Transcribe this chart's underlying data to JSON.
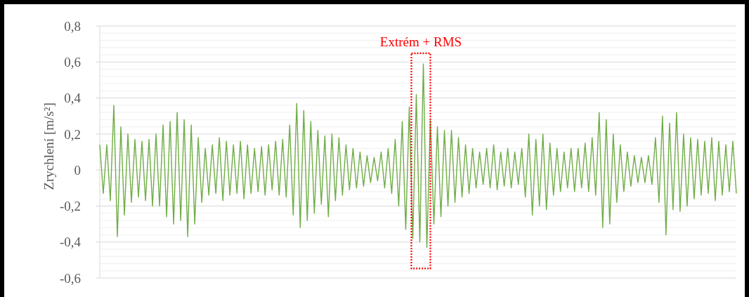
{
  "chart_data": {
    "type": "line",
    "ylabel": "Zrychlení [m/s²]",
    "annotations": [
      "Extrém + RMS"
    ],
    "tick_labels": "y",
    "grid": "y",
    "marker": "none",
    "line_style": "solid",
    "categories": [
      null,
      null,
      null,
      null,
      null,
      null,
      null,
      null,
      null,
      null,
      null,
      null,
      null,
      null,
      null,
      null,
      null,
      null,
      null,
      null,
      null,
      null,
      null,
      null,
      null,
      null,
      null,
      null,
      null,
      null,
      null,
      null,
      null,
      null,
      null,
      null,
      null,
      null,
      null,
      null,
      null,
      null,
      null,
      null,
      null,
      null,
      null,
      null,
      null,
      null,
      null,
      null,
      null,
      null,
      null,
      null,
      null,
      null,
      null,
      null,
      null,
      null,
      null,
      null,
      null,
      null,
      null,
      null,
      null,
      null,
      null,
      null,
      null,
      null,
      null,
      null,
      null,
      null,
      null,
      null,
      null,
      null,
      null,
      null,
      null,
      null,
      null,
      null,
      null,
      null,
      null,
      null,
      null,
      null,
      null,
      null,
      null,
      null,
      null,
      null,
      null,
      null,
      null,
      null,
      null,
      null,
      null,
      null,
      null,
      null,
      null,
      null,
      null,
      null,
      null,
      null,
      null,
      null,
      null,
      null,
      null,
      null,
      null,
      null,
      null,
      null,
      null,
      null,
      null,
      null,
      null,
      null,
      null,
      null,
      null,
      null,
      null,
      null,
      null,
      null,
      null,
      null,
      null,
      null,
      null,
      null,
      null,
      null,
      null,
      null,
      null,
      null,
      null,
      null,
      null,
      null,
      null,
      null,
      null,
      null,
      null,
      null,
      null,
      null,
      null,
      null,
      null,
      null,
      null,
      null,
      null,
      null,
      null,
      null,
      null,
      null,
      null,
      null,
      null,
      null,
      null,
      null
    ],
    "series": [
      {
        "color": "#70ad47",
        "values": [
          0.14,
          -0.13,
          0.14,
          -0.17,
          0.36,
          -0.37,
          0.24,
          -0.25,
          0.2,
          -0.18,
          0.17,
          -0.15,
          0.16,
          -0.17,
          0.17,
          -0.2,
          0.2,
          -0.2,
          0.25,
          -0.26,
          0.27,
          -0.3,
          0.32,
          -0.28,
          0.28,
          -0.37,
          0.25,
          -0.3,
          0.18,
          -0.18,
          0.12,
          -0.14,
          0.14,
          -0.13,
          0.18,
          -0.17,
          0.16,
          -0.14,
          0.14,
          -0.13,
          0.16,
          -0.16,
          0.14,
          -0.13,
          0.12,
          -0.12,
          0.13,
          -0.14,
          0.14,
          -0.11,
          0.16,
          -0.14,
          0.17,
          -0.15,
          0.25,
          -0.25,
          0.37,
          -0.32,
          0.33,
          -0.28,
          0.27,
          -0.24,
          0.22,
          -0.19,
          0.19,
          -0.26,
          0.2,
          -0.17,
          0.18,
          -0.14,
          0.14,
          -0.11,
          0.12,
          -0.1,
          0.1,
          -0.09,
          0.08,
          -0.07,
          0.07,
          -0.06,
          0.1,
          -0.1,
          0.12,
          -0.13,
          0.17,
          -0.2,
          0.27,
          -0.33,
          0.35,
          -0.38,
          0.42,
          -0.4,
          0.59,
          -0.43,
          0.28,
          -0.3,
          0.24,
          -0.26,
          0.22,
          -0.2,
          0.22,
          -0.18,
          0.18,
          -0.15,
          0.14,
          -0.13,
          0.12,
          -0.1,
          0.1,
          -0.08,
          0.12,
          -0.1,
          0.14,
          -0.11,
          0.1,
          -0.09,
          0.12,
          -0.1,
          0.1,
          -0.08,
          0.12,
          -0.15,
          0.2,
          -0.25,
          0.17,
          -0.2,
          0.2,
          -0.22,
          0.15,
          -0.14,
          0.12,
          -0.12,
          0.1,
          -0.1,
          0.12,
          -0.12,
          0.12,
          -0.1,
          0.15,
          -0.12,
          0.18,
          -0.14,
          0.32,
          -0.32,
          0.28,
          -0.3,
          0.2,
          -0.18,
          0.14,
          -0.12,
          0.1,
          -0.09,
          0.08,
          -0.07,
          0.07,
          -0.07,
          0.08,
          -0.08,
          0.18,
          -0.18,
          0.3,
          -0.36,
          0.26,
          -0.22,
          0.32,
          -0.23,
          0.2,
          -0.2,
          0.18,
          -0.16,
          0.17,
          -0.14,
          0.16,
          -0.13,
          0.18,
          -0.17,
          0.16,
          -0.14,
          0.14,
          -0.12,
          0.16,
          -0.13
        ]
      }
    ],
    "ylim": [
      -0.6,
      0.8
    ],
    "yticks": [
      {
        "value": -0.6,
        "label": "-0,6"
      },
      {
        "value": -0.56,
        "label": null
      },
      {
        "value": -0.52,
        "label": null
      },
      {
        "value": -0.48,
        "label": null
      },
      {
        "value": -0.44,
        "label": null
      },
      {
        "value": -0.4,
        "label": "-0,4"
      },
      {
        "value": -0.36,
        "label": null
      },
      {
        "value": -0.32,
        "label": null
      },
      {
        "value": -0.28,
        "label": null
      },
      {
        "value": -0.24,
        "label": null
      },
      {
        "value": -0.2,
        "label": "-0,2"
      },
      {
        "value": -0.16,
        "label": null
      },
      {
        "value": -0.12,
        "label": null
      },
      {
        "value": -0.08,
        "label": null
      },
      {
        "value": -0.04,
        "label": null
      },
      0,
      {
        "value": 0.04,
        "label": null
      },
      {
        "value": 0.08,
        "label": null
      },
      {
        "value": 0.12,
        "label": null
      },
      {
        "value": 0.16,
        "label": null
      },
      {
        "value": 0.2,
        "label": "0,2"
      },
      {
        "value": 0.24,
        "label": null
      },
      {
        "value": 0.28,
        "label": null
      },
      {
        "value": 0.32,
        "label": null
      },
      {
        "value": 0.36,
        "label": null
      },
      {
        "value": 0.4,
        "label": "0,4"
      },
      {
        "value": 0.44,
        "label": null
      },
      {
        "value": 0.48,
        "label": null
      },
      {
        "value": 0.52,
        "label": null
      },
      {
        "value": 0.56,
        "label": null
      },
      {
        "value": 0.6,
        "label": "0,6"
      },
      {
        "value": 0.64,
        "label": null
      },
      {
        "value": 0.68,
        "label": null
      },
      {
        "value": 0.72,
        "label": null
      },
      {
        "value": 0.76,
        "label": null
      },
      {
        "value": 0.8,
        "label": "0,8"
      }
    ]
  }
}
